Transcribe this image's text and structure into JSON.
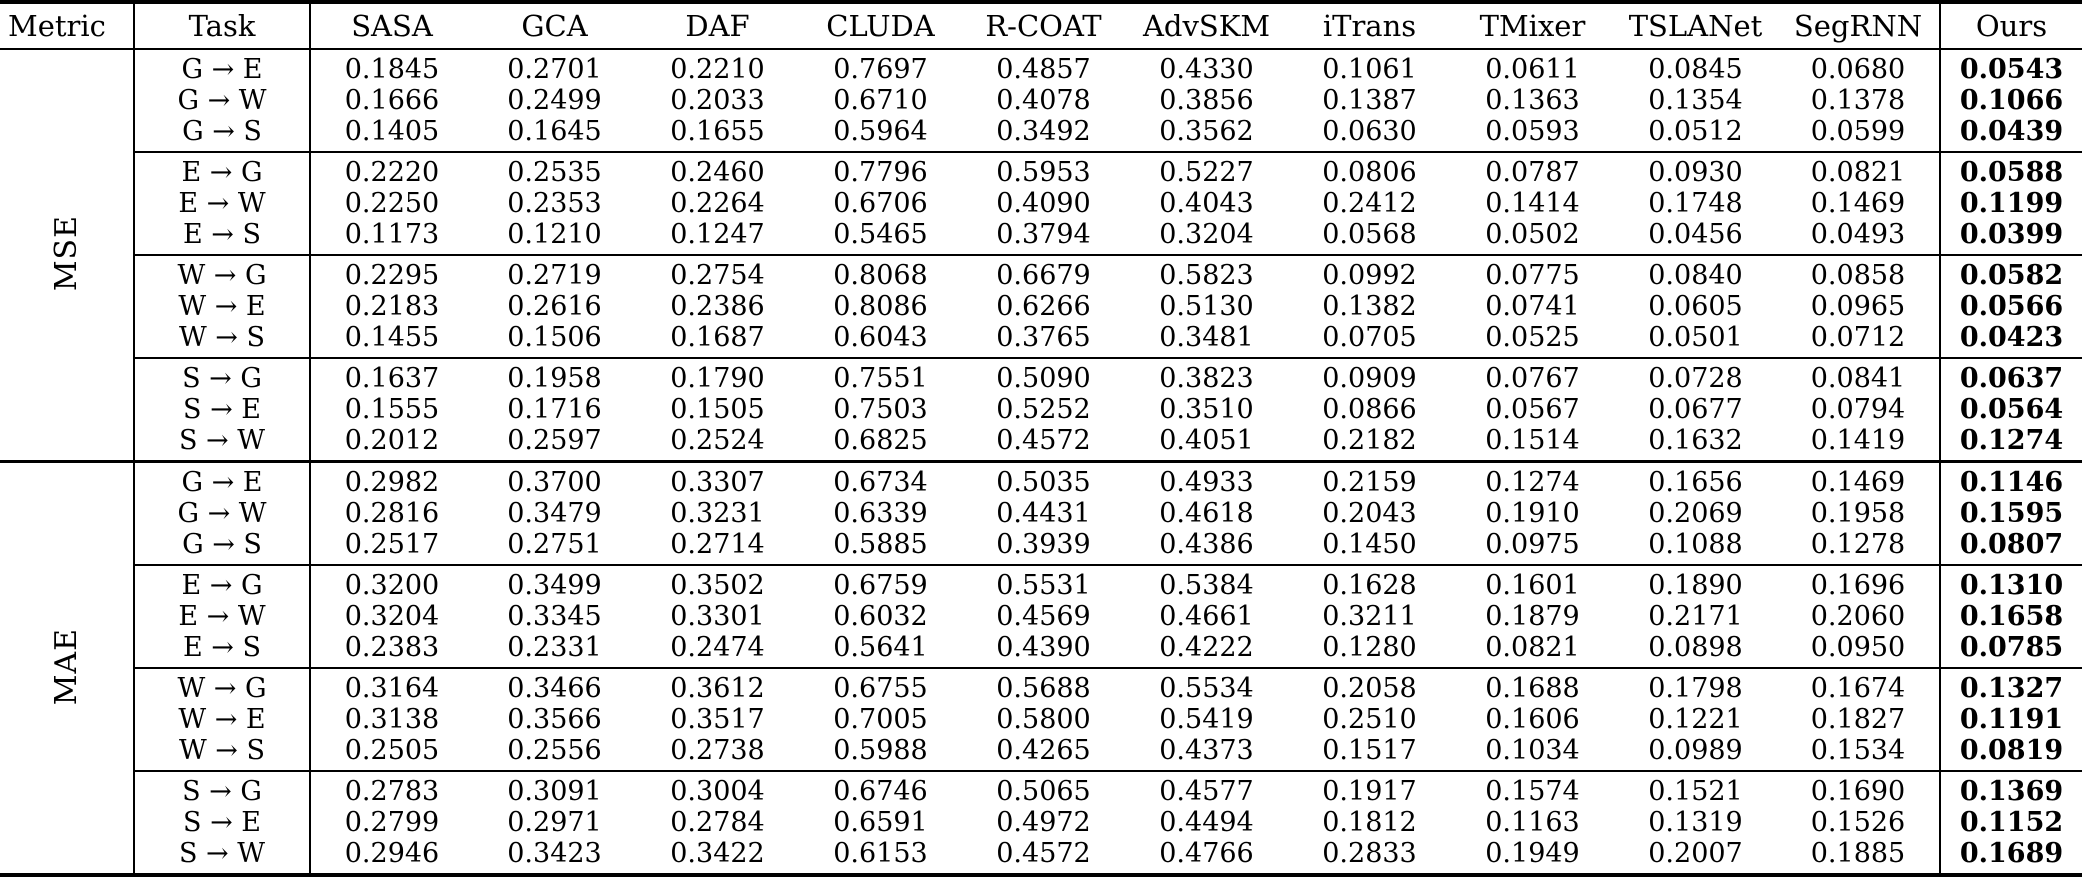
{
  "table": {
    "columns": [
      "Metric",
      "Task",
      "SASA",
      "GCA",
      "DAF",
      "CLUDA",
      "R-COAT",
      "AdvSKM",
      "iTrans",
      "TMixer",
      "TSLANet",
      "SegRNN",
      "Ours"
    ],
    "sections": [
      {
        "metric": "MSE",
        "groups": [
          [
            {
              "task": "G → E",
              "values": [
                "0.1845",
                "0.2701",
                "0.2210",
                "0.7697",
                "0.4857",
                "0.4330",
                "0.1061",
                "0.0611",
                "0.0845",
                "0.0680"
              ],
              "ours": "0.0543"
            },
            {
              "task": "G → W",
              "values": [
                "0.1666",
                "0.2499",
                "0.2033",
                "0.6710",
                "0.4078",
                "0.3856",
                "0.1387",
                "0.1363",
                "0.1354",
                "0.1378"
              ],
              "ours": "0.1066"
            },
            {
              "task": "G → S",
              "values": [
                "0.1405",
                "0.1645",
                "0.1655",
                "0.5964",
                "0.3492",
                "0.3562",
                "0.0630",
                "0.0593",
                "0.0512",
                "0.0599"
              ],
              "ours": "0.0439"
            }
          ],
          [
            {
              "task": "E → G",
              "values": [
                "0.2220",
                "0.2535",
                "0.2460",
                "0.7796",
                "0.5953",
                "0.5227",
                "0.0806",
                "0.0787",
                "0.0930",
                "0.0821"
              ],
              "ours": "0.0588"
            },
            {
              "task": "E → W",
              "values": [
                "0.2250",
                "0.2353",
                "0.2264",
                "0.6706",
                "0.4090",
                "0.4043",
                "0.2412",
                "0.1414",
                "0.1748",
                "0.1469"
              ],
              "ours": "0.1199"
            },
            {
              "task": "E → S",
              "values": [
                "0.1173",
                "0.1210",
                "0.1247",
                "0.5465",
                "0.3794",
                "0.3204",
                "0.0568",
                "0.0502",
                "0.0456",
                "0.0493"
              ],
              "ours": "0.0399"
            }
          ],
          [
            {
              "task": "W → G",
              "values": [
                "0.2295",
                "0.2719",
                "0.2754",
                "0.8068",
                "0.6679",
                "0.5823",
                "0.0992",
                "0.0775",
                "0.0840",
                "0.0858"
              ],
              "ours": "0.0582"
            },
            {
              "task": "W → E",
              "values": [
                "0.2183",
                "0.2616",
                "0.2386",
                "0.8086",
                "0.6266",
                "0.5130",
                "0.1382",
                "0.0741",
                "0.0605",
                "0.0965"
              ],
              "ours": "0.0566"
            },
            {
              "task": "W → S",
              "values": [
                "0.1455",
                "0.1506",
                "0.1687",
                "0.6043",
                "0.3765",
                "0.3481",
                "0.0705",
                "0.0525",
                "0.0501",
                "0.0712"
              ],
              "ours": "0.0423"
            }
          ],
          [
            {
              "task": "S → G",
              "values": [
                "0.1637",
                "0.1958",
                "0.1790",
                "0.7551",
                "0.5090",
                "0.3823",
                "0.0909",
                "0.0767",
                "0.0728",
                "0.0841"
              ],
              "ours": "0.0637"
            },
            {
              "task": "S → E",
              "values": [
                "0.1555",
                "0.1716",
                "0.1505",
                "0.7503",
                "0.5252",
                "0.3510",
                "0.0866",
                "0.0567",
                "0.0677",
                "0.0794"
              ],
              "ours": "0.0564"
            },
            {
              "task": "S → W",
              "values": [
                "0.2012",
                "0.2597",
                "0.2524",
                "0.6825",
                "0.4572",
                "0.4051",
                "0.2182",
                "0.1514",
                "0.1632",
                "0.1419"
              ],
              "ours": "0.1274"
            }
          ]
        ]
      },
      {
        "metric": "MAE",
        "groups": [
          [
            {
              "task": "G → E",
              "values": [
                "0.2982",
                "0.3700",
                "0.3307",
                "0.6734",
                "0.5035",
                "0.4933",
                "0.2159",
                "0.1274",
                "0.1656",
                "0.1469"
              ],
              "ours": "0.1146"
            },
            {
              "task": "G → W",
              "values": [
                "0.2816",
                "0.3479",
                "0.3231",
                "0.6339",
                "0.4431",
                "0.4618",
                "0.2043",
                "0.1910",
                "0.2069",
                "0.1958"
              ],
              "ours": "0.1595"
            },
            {
              "task": "G → S",
              "values": [
                "0.2517",
                "0.2751",
                "0.2714",
                "0.5885",
                "0.3939",
                "0.4386",
                "0.1450",
                "0.0975",
                "0.1088",
                "0.1278"
              ],
              "ours": "0.0807"
            }
          ],
          [
            {
              "task": "E → G",
              "values": [
                "0.3200",
                "0.3499",
                "0.3502",
                "0.6759",
                "0.5531",
                "0.5384",
                "0.1628",
                "0.1601",
                "0.1890",
                "0.1696"
              ],
              "ours": "0.1310"
            },
            {
              "task": "E → W",
              "values": [
                "0.3204",
                "0.3345",
                "0.3301",
                "0.6032",
                "0.4569",
                "0.4661",
                "0.3211",
                "0.1879",
                "0.2171",
                "0.2060"
              ],
              "ours": "0.1658"
            },
            {
              "task": "E → S",
              "values": [
                "0.2383",
                "0.2331",
                "0.2474",
                "0.5641",
                "0.4390",
                "0.4222",
                "0.1280",
                "0.0821",
                "0.0898",
                "0.0950"
              ],
              "ours": "0.0785"
            }
          ],
          [
            {
              "task": "W → G",
              "values": [
                "0.3164",
                "0.3466",
                "0.3612",
                "0.6755",
                "0.5688",
                "0.5534",
                "0.2058",
                "0.1688",
                "0.1798",
                "0.1674"
              ],
              "ours": "0.1327"
            },
            {
              "task": "W → E",
              "values": [
                "0.3138",
                "0.3566",
                "0.3517",
                "0.7005",
                "0.5800",
                "0.5419",
                "0.2510",
                "0.1606",
                "0.1221",
                "0.1827"
              ],
              "ours": "0.1191"
            },
            {
              "task": "W → S",
              "values": [
                "0.2505",
                "0.2556",
                "0.2738",
                "0.5988",
                "0.4265",
                "0.4373",
                "0.1517",
                "0.1034",
                "0.0989",
                "0.1534"
              ],
              "ours": "0.0819"
            }
          ],
          [
            {
              "task": "S → G",
              "values": [
                "0.2783",
                "0.3091",
                "0.3004",
                "0.6746",
                "0.5065",
                "0.4577",
                "0.1917",
                "0.1574",
                "0.1521",
                "0.1690"
              ],
              "ours": "0.1369"
            },
            {
              "task": "S → E",
              "values": [
                "0.2799",
                "0.2971",
                "0.2784",
                "0.6591",
                "0.4972",
                "0.4494",
                "0.1812",
                "0.1163",
                "0.1319",
                "0.1526"
              ],
              "ours": "0.1152"
            },
            {
              "task": "S → W",
              "values": [
                "0.2946",
                "0.3423",
                "0.3422",
                "0.6153",
                "0.4572",
                "0.4766",
                "0.2833",
                "0.1949",
                "0.2007",
                "0.1885"
              ],
              "ours": "0.1689"
            }
          ]
        ]
      }
    ]
  }
}
